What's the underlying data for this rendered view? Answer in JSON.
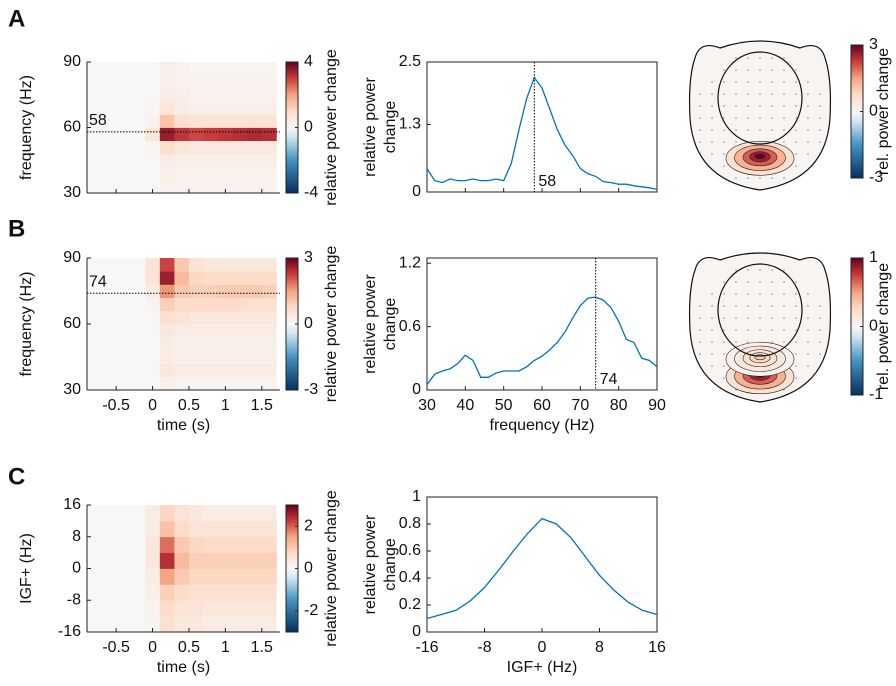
{
  "chart_data": [
    {
      "type": "heatmap",
      "panel": "A",
      "ylabel": "frequency (Hz)",
      "xlim": [
        -0.9,
        1.75
      ],
      "ylim": [
        30,
        90
      ],
      "xticks": [
        -0.5,
        0,
        0.5,
        1,
        1.5
      ],
      "show_xticklabels": false,
      "yticks": [
        30,
        60,
        90
      ],
      "marker": 58,
      "clim": [
        -4,
        4
      ],
      "cticks": [
        -4,
        0,
        4
      ],
      "clabel": "relative power change",
      "x": [
        -0.8,
        -0.6,
        -0.4,
        -0.2,
        0,
        0.2,
        0.4,
        0.6,
        0.8,
        1.0,
        1.2,
        1.4,
        1.6
      ],
      "y": [
        33,
        39,
        45,
        51,
        57,
        63,
        69,
        75,
        81,
        87
      ],
      "values": [
        [
          0,
          0,
          0,
          0,
          0,
          0.2,
          0.2,
          0.2,
          0.2,
          0.2,
          0.2,
          0.2,
          0.2
        ],
        [
          0,
          0,
          0,
          0,
          0,
          0.3,
          0.2,
          0.2,
          0.2,
          0.2,
          0.2,
          0.2,
          0.2
        ],
        [
          0,
          0,
          0,
          0,
          0,
          0.4,
          0.3,
          0.3,
          0.3,
          0.3,
          0.3,
          0.3,
          0.3
        ],
        [
          0,
          0,
          0,
          0,
          0.1,
          0.9,
          0.6,
          0.5,
          0.5,
          0.5,
          0.5,
          0.5,
          0.5
        ],
        [
          0,
          0,
          0,
          0,
          0.6,
          3.5,
          3.1,
          2.9,
          3.0,
          3.1,
          3.2,
          3.3,
          3.2
        ],
        [
          0,
          0,
          0,
          0,
          0.2,
          1.4,
          0.8,
          0.7,
          0.7,
          0.7,
          0.7,
          0.7,
          0.7
        ],
        [
          0,
          0,
          0,
          0,
          0.1,
          0.6,
          0.4,
          0.3,
          0.3,
          0.3,
          0.3,
          0.3,
          0.3
        ],
        [
          0,
          0,
          0,
          0,
          0,
          0.4,
          0.3,
          0.2,
          0.2,
          0.2,
          0.2,
          0.2,
          0.2
        ],
        [
          0,
          0,
          0,
          0,
          0,
          0.3,
          0.2,
          0.2,
          0.2,
          0.2,
          0.2,
          0.2,
          0.2
        ],
        [
          0,
          0,
          0,
          0,
          0,
          0.3,
          0.2,
          0.1,
          0.1,
          0.1,
          0.1,
          0.1,
          0.1
        ]
      ]
    },
    {
      "type": "line",
      "ylabel": [
        "relative power",
        "change"
      ],
      "xlim": [
        30,
        90
      ],
      "ylim": [
        0,
        2.5
      ],
      "xticks": [
        30,
        40,
        50,
        60,
        70,
        80,
        90
      ],
      "show_xticklabels": false,
      "yticks": [
        0,
        1.3,
        2.5
      ],
      "marker": 58,
      "color": "#0072bd",
      "x": [
        30,
        32,
        34,
        36,
        38,
        40,
        42,
        44,
        46,
        48,
        50,
        52,
        54,
        56,
        58,
        60,
        62,
        64,
        66,
        68,
        70,
        72,
        74,
        76,
        78,
        80,
        82,
        84,
        86,
        88,
        90
      ],
      "values": [
        0.45,
        0.22,
        0.18,
        0.25,
        0.22,
        0.22,
        0.25,
        0.22,
        0.22,
        0.25,
        0.22,
        0.55,
        1.2,
        1.8,
        2.2,
        2.0,
        1.6,
        1.2,
        0.9,
        0.7,
        0.45,
        0.35,
        0.3,
        0.2,
        0.18,
        0.15,
        0.15,
        0.12,
        0.1,
        0.08,
        0.05
      ]
    },
    {
      "type": "topo",
      "clim": [
        -3,
        3
      ],
      "cticks": [
        -3,
        0,
        3
      ],
      "clabel": "rel. power change",
      "sources": [
        {
          "x": 0,
          "y": -0.62,
          "value": 3
        }
      ]
    },
    {
      "type": "heatmap",
      "panel": "B",
      "ylabel": "frequency (Hz)",
      "xlim": [
        -0.9,
        1.75
      ],
      "ylim": [
        30,
        90
      ],
      "xticks": [
        -0.5,
        0,
        0.5,
        1,
        1.5
      ],
      "yticks": [
        30,
        60,
        90
      ],
      "xlabel": "time (s)",
      "marker": 74,
      "clim": [
        -3,
        3
      ],
      "cticks": [
        -3,
        0,
        3
      ],
      "clabel": "relative power change",
      "x": [
        -0.8,
        -0.6,
        -0.4,
        -0.2,
        0,
        0.2,
        0.4,
        0.6,
        0.8,
        1.0,
        1.2,
        1.4,
        1.6
      ],
      "y": [
        33,
        39,
        45,
        51,
        57,
        63,
        69,
        75,
        81,
        87
      ],
      "values": [
        [
          0,
          0,
          0,
          0,
          0,
          0.2,
          0.1,
          0.1,
          0.1,
          0.1,
          0.1,
          0.1,
          0.1
        ],
        [
          0,
          0,
          0,
          0,
          0,
          0.4,
          0.3,
          0.3,
          0.3,
          0.3,
          0.3,
          0.3,
          0.3
        ],
        [
          0,
          0,
          0,
          0,
          0,
          0.3,
          0.2,
          0.2,
          0.2,
          0.2,
          0.2,
          0.2,
          0.2
        ],
        [
          0,
          0,
          0,
          0,
          0,
          0.3,
          0.2,
          0.2,
          0.2,
          0.2,
          0.2,
          0.2,
          0.2
        ],
        [
          0,
          0,
          0,
          0,
          0,
          0.4,
          0.3,
          0.3,
          0.3,
          0.3,
          0.3,
          0.3,
          0.3
        ],
        [
          0,
          0,
          0,
          0,
          0,
          0.6,
          0.5,
          0.4,
          0.4,
          0.4,
          0.4,
          0.4,
          0.4
        ],
        [
          0,
          0,
          0,
          0,
          0.1,
          0.9,
          0.7,
          0.7,
          0.7,
          0.7,
          0.7,
          0.6,
          0.6
        ],
        [
          0,
          0,
          0,
          0,
          0.3,
          1.6,
          1.0,
          0.9,
          0.9,
          1.0,
          1.0,
          1.0,
          0.9
        ],
        [
          0,
          0,
          0,
          0,
          0.5,
          2.6,
          1.2,
          0.8,
          0.7,
          0.7,
          0.7,
          0.7,
          0.7
        ],
        [
          0,
          0,
          0,
          0,
          0.5,
          2.2,
          1.0,
          0.5,
          0.4,
          0.4,
          0.4,
          0.4,
          0.4
        ]
      ]
    },
    {
      "type": "line",
      "ylabel": [
        "relative power",
        "change"
      ],
      "xlabel": "frequency (Hz)",
      "xlim": [
        30,
        90
      ],
      "ylim": [
        0,
        1.25
      ],
      "xticks": [
        30,
        40,
        50,
        60,
        70,
        80,
        90
      ],
      "yticks": [
        0,
        0.6,
        1.2
      ],
      "marker": 74,
      "color": "#0072bd",
      "x": [
        30,
        32,
        34,
        36,
        38,
        40,
        42,
        44,
        46,
        48,
        50,
        52,
        54,
        56,
        58,
        60,
        62,
        64,
        66,
        68,
        70,
        72,
        74,
        76,
        78,
        80,
        82,
        84,
        86,
        88,
        90
      ],
      "values": [
        0.05,
        0.15,
        0.18,
        0.2,
        0.25,
        0.33,
        0.28,
        0.12,
        0.12,
        0.16,
        0.18,
        0.18,
        0.18,
        0.22,
        0.28,
        0.32,
        0.38,
        0.45,
        0.55,
        0.68,
        0.8,
        0.87,
        0.88,
        0.85,
        0.78,
        0.65,
        0.48,
        0.45,
        0.3,
        0.28,
        0.22
      ]
    },
    {
      "type": "topo",
      "clim": [
        -1,
        1
      ],
      "cticks": [
        -1,
        0,
        1
      ],
      "clabel": "rel. power change",
      "sources": [
        {
          "x": 0,
          "y": -0.72,
          "value": 1
        },
        {
          "x": 0,
          "y": -0.45,
          "value": 0.3
        }
      ]
    },
    {
      "type": "heatmap",
      "panel": "C",
      "ylabel": "IGF+ (Hz)",
      "xlim": [
        -0.9,
        1.75
      ],
      "ylim": [
        -16,
        16
      ],
      "xticks": [
        -0.5,
        0,
        0.5,
        1,
        1.5
      ],
      "yticks": [
        -16,
        -8,
        0,
        8,
        16
      ],
      "xlabel": "time (s)",
      "clim": [
        -3,
        3
      ],
      "cticks": [
        -2,
        0,
        2
      ],
      "clabel": "relative power change",
      "x": [
        -0.8,
        -0.6,
        -0.4,
        -0.2,
        0,
        0.2,
        0.4,
        0.6,
        0.8,
        1.0,
        1.2,
        1.4,
        1.6
      ],
      "y": [
        -14,
        -10,
        -6,
        -2,
        2,
        6,
        10,
        14
      ],
      "values": [
        [
          0,
          0,
          0,
          0,
          0.1,
          0.6,
          0.4,
          0.4,
          0.3,
          0.3,
          0.3,
          0.3,
          0.3
        ],
        [
          0,
          0,
          0,
          0,
          0.1,
          0.7,
          0.5,
          0.5,
          0.4,
          0.4,
          0.4,
          0.4,
          0.4
        ],
        [
          0,
          0,
          0,
          0,
          0.2,
          0.9,
          0.7,
          0.6,
          0.6,
          0.6,
          0.6,
          0.6,
          0.6
        ],
        [
          0,
          0,
          0,
          0,
          0.3,
          1.5,
          1.0,
          0.8,
          0.8,
          0.8,
          0.8,
          0.8,
          0.8
        ],
        [
          0,
          0,
          0,
          0,
          0.4,
          2.4,
          1.2,
          0.9,
          0.9,
          0.9,
          0.9,
          0.9,
          0.9
        ],
        [
          0,
          0,
          0,
          0,
          0.4,
          1.9,
          1.0,
          0.8,
          0.7,
          0.7,
          0.7,
          0.7,
          0.7
        ],
        [
          0,
          0,
          0,
          0,
          0.3,
          1.1,
          0.7,
          0.5,
          0.5,
          0.5,
          0.5,
          0.5,
          0.5
        ],
        [
          0,
          0,
          0,
          0,
          0.3,
          0.8,
          0.5,
          0.4,
          0.3,
          0.3,
          0.3,
          0.3,
          0.3
        ]
      ]
    },
    {
      "type": "line",
      "ylabel": [
        "relative power",
        "change"
      ],
      "xlabel": "IGF+ (Hz)",
      "xlim": [
        -16,
        16
      ],
      "ylim": [
        0,
        1
      ],
      "xticks": [
        -16,
        -8,
        0,
        8,
        16
      ],
      "yticks": [
        0,
        0.2,
        0.4,
        0.6,
        0.8,
        1
      ],
      "color": "#0072bd",
      "x": [
        -16,
        -14,
        -12,
        -10,
        -8,
        -6,
        -4,
        -2,
        0,
        2,
        4,
        6,
        8,
        10,
        12,
        14,
        16
      ],
      "values": [
        0.1,
        0.13,
        0.16,
        0.23,
        0.33,
        0.46,
        0.6,
        0.73,
        0.84,
        0.8,
        0.7,
        0.56,
        0.42,
        0.31,
        0.22,
        0.16,
        0.13
      ]
    }
  ]
}
